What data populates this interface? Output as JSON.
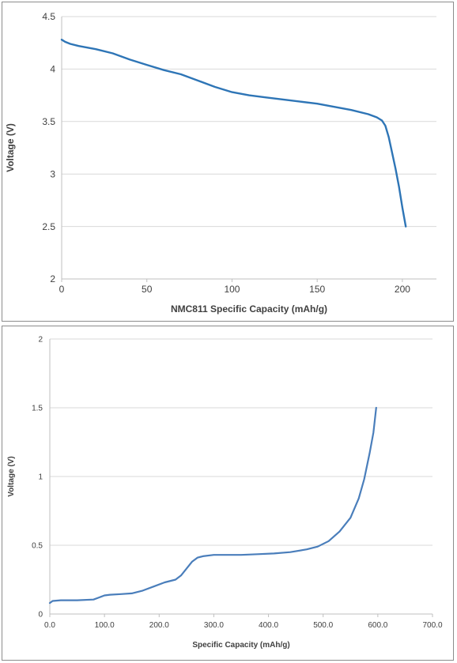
{
  "chart_data": [
    {
      "type": "line",
      "xlabel": "NMC811 Specific Capacity (mAh/g)",
      "ylabel": "Voltage (V)",
      "xlim": [
        0,
        220
      ],
      "ylim": [
        2,
        4.5
      ],
      "xticks": [
        "0",
        "50",
        "100",
        "150",
        "200"
      ],
      "xtick_values": [
        0,
        50,
        100,
        150,
        200
      ],
      "yticks": [
        "2",
        "2.5",
        "3",
        "3.5",
        "4",
        "4.5"
      ],
      "ytick_values": [
        2,
        2.5,
        3,
        3.5,
        4,
        4.5
      ],
      "grid": "horizontal",
      "line_color": "#2e75b6",
      "series": [
        {
          "x": [
            0,
            2,
            5,
            10,
            20,
            30,
            40,
            50,
            60,
            70,
            75,
            80,
            90,
            100,
            110,
            120,
            130,
            140,
            150,
            160,
            170,
            180,
            185,
            188,
            190,
            192,
            194,
            196,
            198,
            200,
            202
          ],
          "y": [
            4.28,
            4.26,
            4.24,
            4.22,
            4.19,
            4.15,
            4.09,
            4.04,
            3.99,
            3.95,
            3.92,
            3.89,
            3.83,
            3.78,
            3.75,
            3.73,
            3.71,
            3.69,
            3.67,
            3.64,
            3.61,
            3.57,
            3.54,
            3.51,
            3.46,
            3.35,
            3.2,
            3.05,
            2.88,
            2.68,
            2.5
          ]
        }
      ]
    },
    {
      "type": "line",
      "xlabel": "Specific Capacity (mAh/g)",
      "ylabel": "Voltage (V)",
      "xlim": [
        0,
        700
      ],
      "ylim": [
        0,
        2
      ],
      "xticks": [
        "0.0",
        "100.0",
        "200.0",
        "300.0",
        "400.0",
        "500.0",
        "600.0",
        "700.0"
      ],
      "xtick_values": [
        0,
        100,
        200,
        300,
        400,
        500,
        600,
        700
      ],
      "yticks": [
        "0",
        "0.5",
        "1",
        "1.5",
        "2"
      ],
      "ytick_values": [
        0,
        0.5,
        1,
        1.5,
        2
      ],
      "grid": "horizontal",
      "line_color": "#4a7ebb",
      "series": [
        {
          "x": [
            0,
            5,
            20,
            50,
            80,
            90,
            100,
            110,
            130,
            150,
            170,
            190,
            210,
            230,
            240,
            250,
            260,
            270,
            280,
            300,
            320,
            350,
            380,
            410,
            440,
            470,
            490,
            510,
            530,
            550,
            565,
            575,
            585,
            592,
            597
          ],
          "y": [
            0.08,
            0.095,
            0.1,
            0.1,
            0.105,
            0.12,
            0.135,
            0.14,
            0.145,
            0.15,
            0.17,
            0.2,
            0.23,
            0.25,
            0.28,
            0.33,
            0.38,
            0.41,
            0.42,
            0.43,
            0.43,
            0.43,
            0.435,
            0.44,
            0.45,
            0.47,
            0.49,
            0.53,
            0.6,
            0.7,
            0.84,
            0.98,
            1.17,
            1.32,
            1.5
          ]
        }
      ]
    }
  ]
}
